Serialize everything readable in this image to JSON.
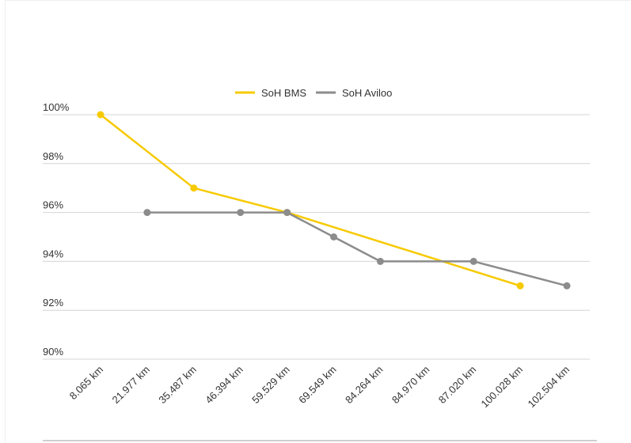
{
  "chart_data": {
    "type": "line",
    "categories": [
      "8.065 km",
      "21.977 km",
      "35.487 km",
      "46.394 km",
      "59.529 km",
      "69.549 km",
      "84.264 km",
      "84.970 km",
      "87.020 km",
      "100.028 km",
      "102.504 km"
    ],
    "series": [
      {
        "name": "SoH BMS",
        "color": "#f7ca00",
        "values": [
          100,
          null,
          97,
          null,
          96,
          null,
          null,
          null,
          null,
          93,
          null
        ]
      },
      {
        "name": "SoH Aviloo",
        "color": "#8c8c8c",
        "values": [
          null,
          96,
          null,
          96,
          96,
          95,
          94,
          null,
          94,
          null,
          93
        ]
      }
    ],
    "y_ticks": [
      "100%",
      "98%",
      "96%",
      "94%",
      "92%",
      "90%"
    ],
    "ylim": [
      90,
      100
    ],
    "grid": "horizontal",
    "legend": "top-center",
    "title": "",
    "xlabel": "",
    "ylabel": ""
  }
}
